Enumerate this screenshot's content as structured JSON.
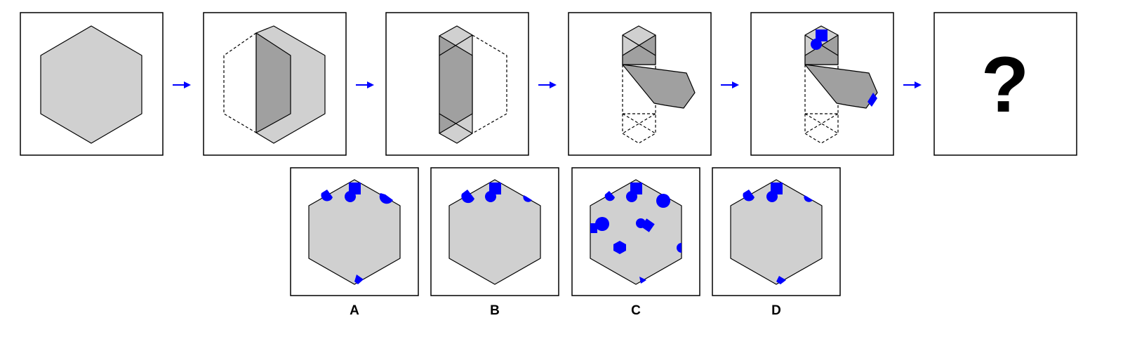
{
  "sequence": {
    "steps": [
      "hexagon",
      "fold-left",
      "fold-right",
      "fold-bottom",
      "punch-holes"
    ],
    "missing_label": "?"
  },
  "options": [
    {
      "label": "A"
    },
    {
      "label": "B"
    },
    {
      "label": "C"
    },
    {
      "label": "D"
    }
  ],
  "colors": {
    "paper": "#d0d0d0",
    "folded": "#a0a0a0",
    "holes": "#0000ff",
    "arrows": "#0000ff"
  }
}
